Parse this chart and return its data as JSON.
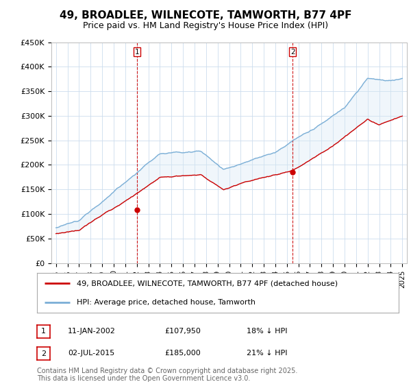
{
  "title": "49, BROADLEE, WILNECOTE, TAMWORTH, B77 4PF",
  "subtitle": "Price paid vs. HM Land Registry's House Price Index (HPI)",
  "yticks": [
    0,
    50000,
    100000,
    150000,
    200000,
    250000,
    300000,
    350000,
    400000,
    450000
  ],
  "ytick_labels": [
    "£0",
    "£50K",
    "£100K",
    "£150K",
    "£200K",
    "£250K",
    "£300K",
    "£350K",
    "£400K",
    "£450K"
  ],
  "marker1_year": 2002.04,
  "marker1_price": 107950,
  "marker2_year": 2015.5,
  "marker2_price": 185000,
  "sale_color": "#cc0000",
  "hpi_color": "#7aaed6",
  "fill_color": "#d6e8f5",
  "dashed_color": "#cc0000",
  "legend_sale": "49, BROADLEE, WILNECOTE, TAMWORTH, B77 4PF (detached house)",
  "legend_hpi": "HPI: Average price, detached house, Tamworth",
  "annotation1_date": "11-JAN-2002",
  "annotation1_price": "£107,950",
  "annotation1_pct": "18% ↓ HPI",
  "annotation2_date": "02-JUL-2015",
  "annotation2_price": "£185,000",
  "annotation2_pct": "21% ↓ HPI",
  "footer": "Contains HM Land Registry data © Crown copyright and database right 2025.\nThis data is licensed under the Open Government Licence v3.0.",
  "bg_color": "#ffffff",
  "grid_color": "#ccddee",
  "title_fontsize": 11,
  "subtitle_fontsize": 9,
  "tick_fontsize": 8,
  "legend_fontsize": 8,
  "annotation_fontsize": 8,
  "footer_fontsize": 7
}
